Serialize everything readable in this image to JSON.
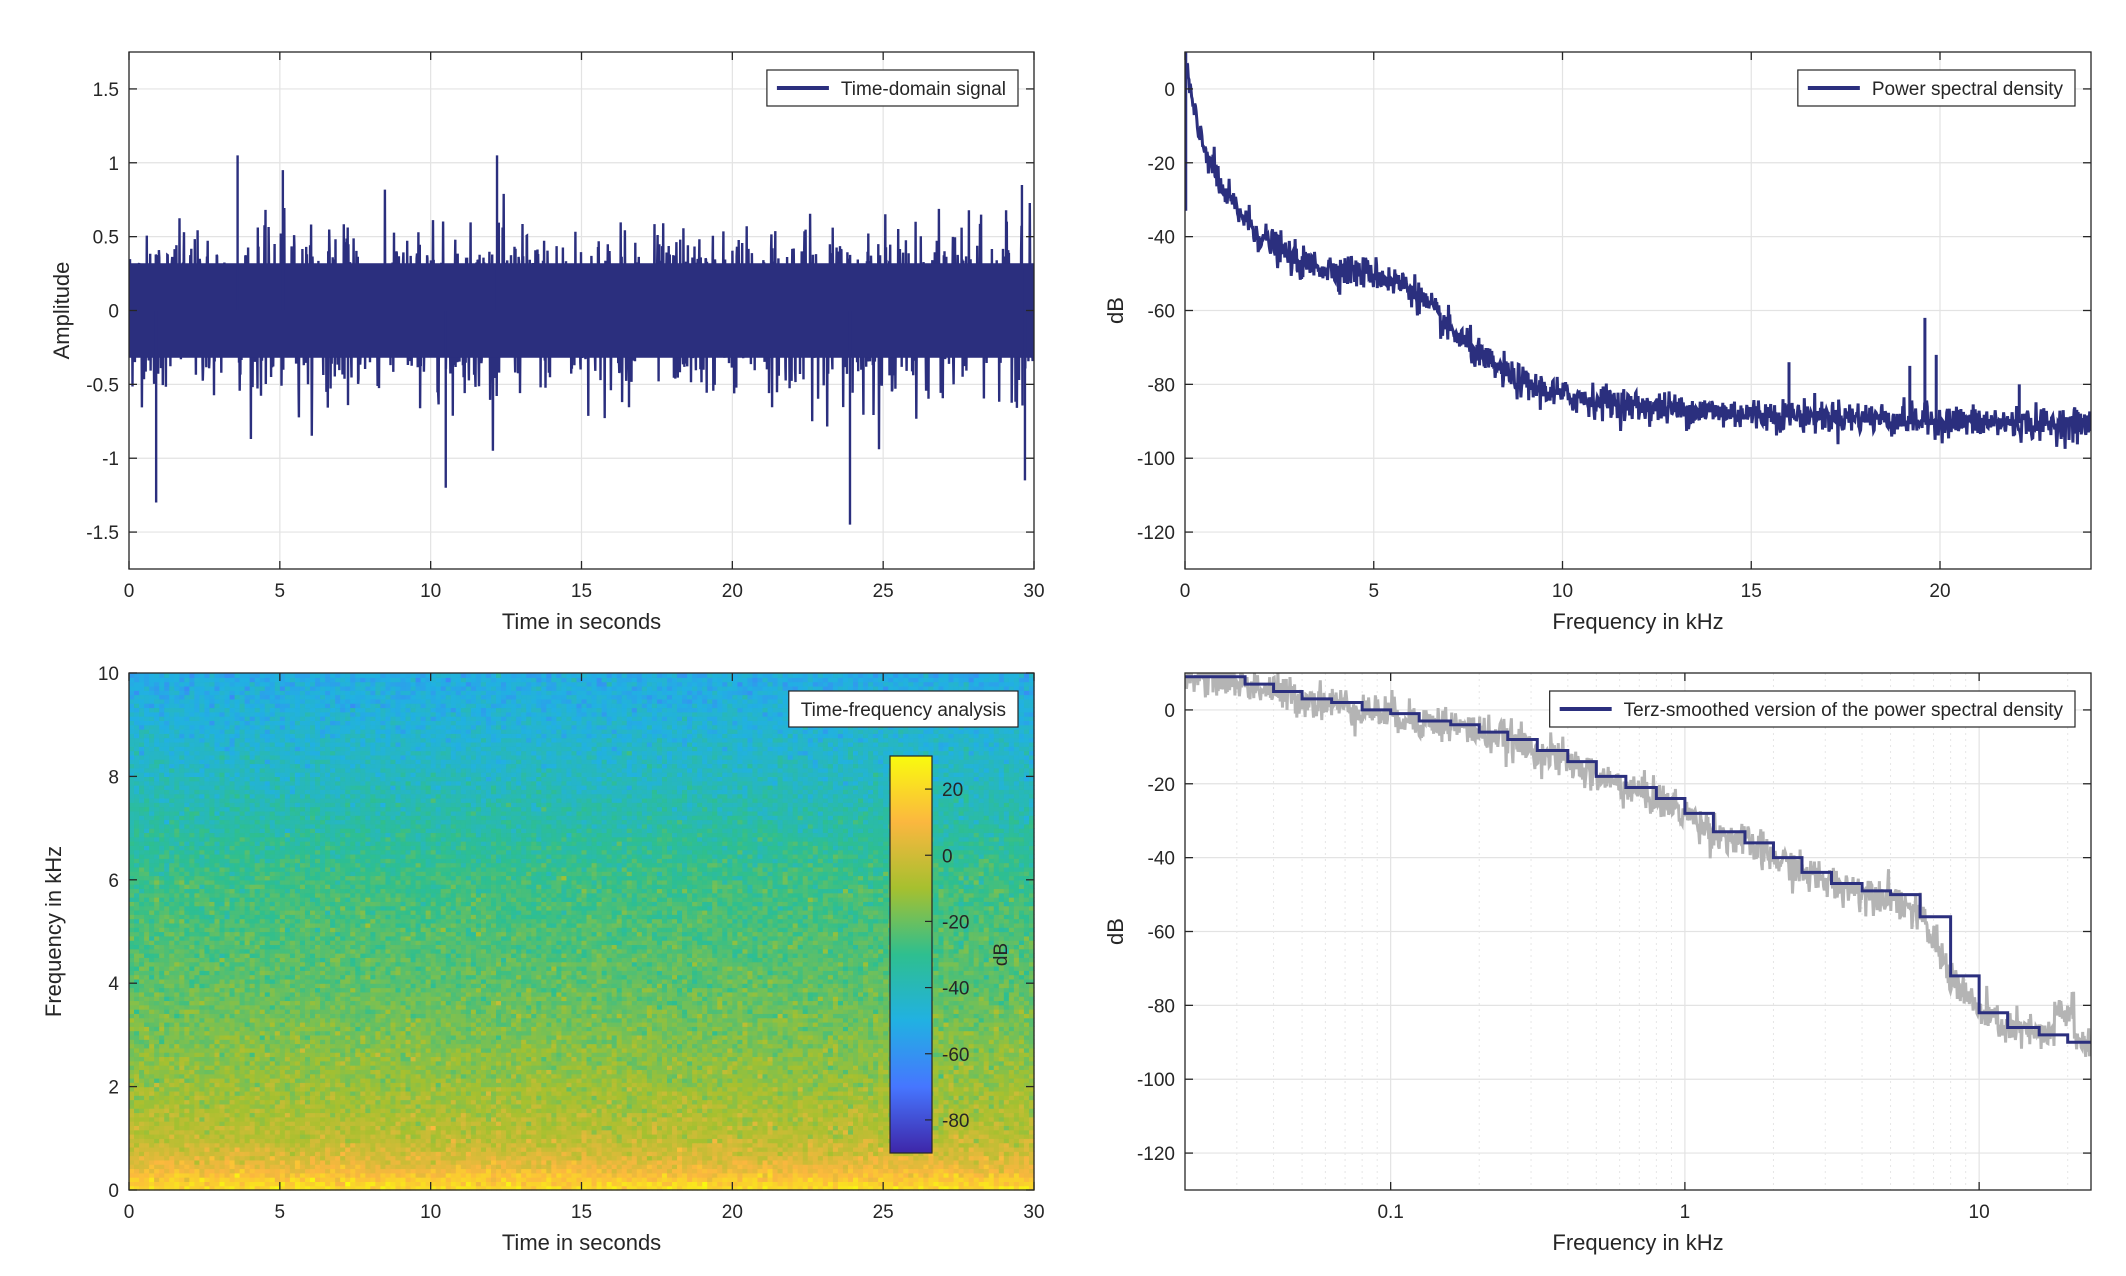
{
  "chart_data": [
    {
      "id": "time",
      "type": "line",
      "xlabel": "Time in seconds",
      "ylabel": "Amplitude",
      "xlim": [
        0,
        30
      ],
      "ylim": [
        -1.75,
        1.75
      ],
      "xticks": [
        0,
        5,
        10,
        15,
        20,
        25,
        30
      ],
      "yticks": [
        -1.5,
        -1,
        -0.5,
        0,
        0.5,
        1,
        1.5
      ],
      "grid": true,
      "legend_position": "top-right",
      "series": [
        {
          "name": "Time-domain signal",
          "color": "#2b2f7e",
          "description": "dense noise, mostly within ±0.6, peaks near ±1",
          "peaks": [
            {
              "x": 0.9,
              "y": -1.3
            },
            {
              "x": 3.6,
              "y": 1.05
            },
            {
              "x": 5.1,
              "y": 0.95
            },
            {
              "x": 12.2,
              "y": 1.05
            },
            {
              "x": 10.5,
              "y": -1.2
            },
            {
              "x": 23.9,
              "y": -1.45
            },
            {
              "x": 29.7,
              "y": -1.15
            },
            {
              "x": 29.6,
              "y": 0.85
            }
          ]
        }
      ]
    },
    {
      "id": "psd",
      "type": "line",
      "xlabel": "Frequency in kHz",
      "ylabel": "dB",
      "xlim": [
        0,
        24
      ],
      "ylim": [
        -130,
        10
      ],
      "xticks": [
        0,
        5,
        10,
        15,
        20
      ],
      "yticks": [
        -120,
        -100,
        -80,
        -60,
        -40,
        -20,
        0
      ],
      "grid": true,
      "legend_position": "top-right",
      "series": [
        {
          "name": "Power spectral density",
          "color": "#2b2f7e",
          "envelope": [
            {
              "x": 0.05,
              "y": 5
            },
            {
              "x": 0.3,
              "y": -10
            },
            {
              "x": 1,
              "y": -28
            },
            {
              "x": 2,
              "y": -40
            },
            {
              "x": 3,
              "y": -47
            },
            {
              "x": 4,
              "y": -49
            },
            {
              "x": 5,
              "y": -50
            },
            {
              "x": 6,
              "y": -54
            },
            {
              "x": 7,
              "y": -65
            },
            {
              "x": 8,
              "y": -74
            },
            {
              "x": 9,
              "y": -80
            },
            {
              "x": 10,
              "y": -83
            },
            {
              "x": 12,
              "y": -86
            },
            {
              "x": 15,
              "y": -88
            },
            {
              "x": 18,
              "y": -89
            },
            {
              "x": 20,
              "y": -90
            },
            {
              "x": 24,
              "y": -91
            }
          ],
          "peaks": [
            {
              "x": 16,
              "y": -74
            },
            {
              "x": 19.2,
              "y": -75
            },
            {
              "x": 19.6,
              "y": -62
            },
            {
              "x": 19.9,
              "y": -72
            },
            {
              "x": 22.1,
              "y": -80
            }
          ]
        }
      ]
    },
    {
      "id": "spectrogram",
      "type": "heatmap",
      "xlabel": "Time in seconds",
      "ylabel": "Frequency in kHz",
      "xlim": [
        0,
        30
      ],
      "ylim": [
        0,
        10
      ],
      "xticks": [
        0,
        5,
        10,
        15,
        20,
        25,
        30
      ],
      "yticks": [
        0,
        2,
        4,
        6,
        8,
        10
      ],
      "legend_position": "top-right",
      "legend": "Time-frequency analysis",
      "colorbar": {
        "label": "dB",
        "range": [
          -90,
          30
        ],
        "ticks": [
          -80,
          -60,
          -40,
          -20,
          0,
          20
        ],
        "colormap": [
          "#3e26a8",
          "#4676ff",
          "#21b1e2",
          "#2ebf8f",
          "#a6c02f",
          "#fbb73f",
          "#f9fb0e"
        ]
      },
      "levels": [
        {
          "freq_khz": 0,
          "db": 22
        },
        {
          "freq_khz": 0.5,
          "db": 5
        },
        {
          "freq_khz": 1,
          "db": -5
        },
        {
          "freq_khz": 2,
          "db": -12
        },
        {
          "freq_khz": 4,
          "db": -22
        },
        {
          "freq_khz": 6,
          "db": -28
        },
        {
          "freq_khz": 8,
          "db": -42
        },
        {
          "freq_khz": 10,
          "db": -52
        }
      ]
    },
    {
      "id": "terz",
      "type": "line",
      "xlabel": "Frequency in kHz",
      "ylabel": "dB",
      "xscale": "log",
      "xlim": [
        0.02,
        24
      ],
      "ylim": [
        -130,
        10
      ],
      "xticks": [
        0.1,
        1,
        10
      ],
      "xticklabels": [
        "0.1",
        "1",
        "10"
      ],
      "yticks": [
        -120,
        -100,
        -80,
        -60,
        -40,
        -20,
        0
      ],
      "grid": true,
      "legend_position": "top-right",
      "series": [
        {
          "name": "Terz-smoothed version of the power spectral density",
          "color": "#2b2f7e",
          "steps": [
            {
              "x": 0.025,
              "y": 9
            },
            {
              "x": 0.032,
              "y": 7
            },
            {
              "x": 0.04,
              "y": 5
            },
            {
              "x": 0.05,
              "y": 3
            },
            {
              "x": 0.063,
              "y": 2
            },
            {
              "x": 0.08,
              "y": 0
            },
            {
              "x": 0.1,
              "y": -1
            },
            {
              "x": 0.125,
              "y": -3
            },
            {
              "x": 0.16,
              "y": -4
            },
            {
              "x": 0.2,
              "y": -6
            },
            {
              "x": 0.25,
              "y": -8
            },
            {
              "x": 0.315,
              "y": -11
            },
            {
              "x": 0.4,
              "y": -14
            },
            {
              "x": 0.5,
              "y": -18
            },
            {
              "x": 0.63,
              "y": -21
            },
            {
              "x": 0.8,
              "y": -24
            },
            {
              "x": 1.0,
              "y": -28
            },
            {
              "x": 1.25,
              "y": -33
            },
            {
              "x": 1.6,
              "y": -36
            },
            {
              "x": 2.0,
              "y": -40
            },
            {
              "x": 2.5,
              "y": -44
            },
            {
              "x": 3.15,
              "y": -47
            },
            {
              "x": 4.0,
              "y": -49
            },
            {
              "x": 5.0,
              "y": -50
            },
            {
              "x": 6.3,
              "y": -56
            },
            {
              "x": 8.0,
              "y": -72
            },
            {
              "x": 10.0,
              "y": -82
            },
            {
              "x": 12.5,
              "y": -86
            },
            {
              "x": 16.0,
              "y": -88
            },
            {
              "x": 20.0,
              "y": -90
            },
            {
              "x": 24.0,
              "y": -90
            }
          ]
        }
      ],
      "background_series_color": "#b4b4b4"
    }
  ]
}
